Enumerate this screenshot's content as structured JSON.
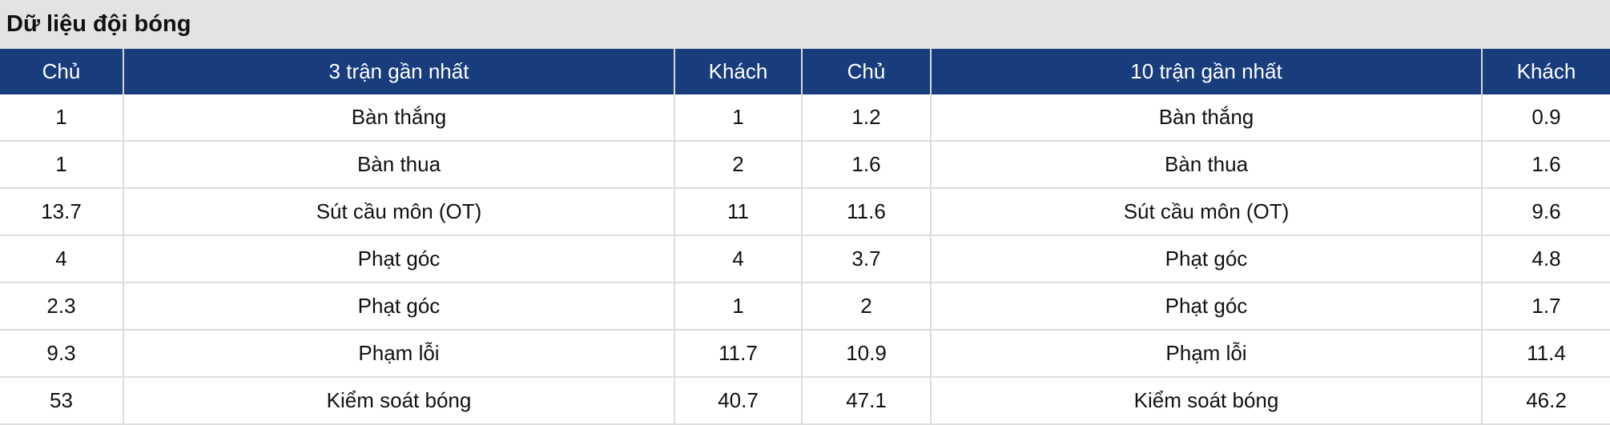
{
  "title": "Dữ liệu đội bóng",
  "colors": {
    "header_bg": "#183c7c",
    "title_bg": "#e3e3e3"
  },
  "headers": [
    "Chủ",
    "3 trận gần nhất",
    "Khách",
    "Chủ",
    "10 trận gần nhất",
    "Khách"
  ],
  "rows": [
    [
      "1",
      "Bàn thắng",
      "1",
      "1.2",
      "Bàn thắng",
      "0.9"
    ],
    [
      "1",
      "Bàn thua",
      "2",
      "1.6",
      "Bàn thua",
      "1.6"
    ],
    [
      "13.7",
      "Sút cầu môn (OT)",
      "11",
      "11.6",
      "Sút cầu môn (OT)",
      "9.6"
    ],
    [
      "4",
      "Phạt góc",
      "4",
      "3.7",
      "Phạt góc",
      "4.8"
    ],
    [
      "2.3",
      "Phạt góc",
      "1",
      "2",
      "Phạt góc",
      "1.7"
    ],
    [
      "9.3",
      "Phạm lỗi",
      "11.7",
      "10.9",
      "Phạm lỗi",
      "11.4"
    ],
    [
      "53",
      "Kiểm soát bóng",
      "40.7",
      "47.1",
      "Kiểm soát bóng",
      "46.2"
    ]
  ]
}
